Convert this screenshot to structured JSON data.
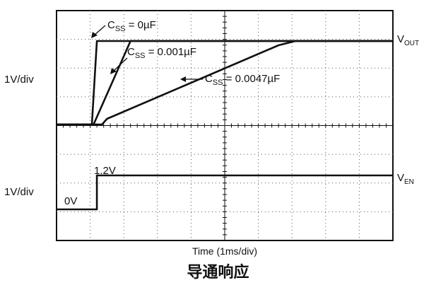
{
  "caption": "导通响应",
  "chart_data": {
    "type": "line",
    "xlabel": "Time (1ms/div)",
    "x_unit": "ms",
    "xlim": [
      0,
      10
    ],
    "grid": true,
    "panels": [
      {
        "name": "top",
        "ylabel": "1V/div",
        "ylim": [
          0,
          3
        ],
        "channel_label": "V_OUT",
        "series": [
          {
            "name": "C_SS = 0µF",
            "x": [
              0,
              1.05,
              1.2,
              10
            ],
            "y": [
              0,
              0,
              2.95,
              2.95
            ]
          },
          {
            "name": "C_SS = 0.001µF",
            "x": [
              0,
              1.1,
              2.2,
              10
            ],
            "y": [
              0,
              0,
              2.95,
              2.95
            ]
          },
          {
            "name": "C_SS = 0.0047µF",
            "x": [
              0,
              1.35,
              1.5,
              6.6,
              7.1,
              10
            ],
            "y": [
              0,
              0,
              0.2,
              2.8,
              2.95,
              2.95
            ]
          }
        ]
      },
      {
        "name": "bottom",
        "ylabel": "1V/div",
        "ylim": [
          0,
          2
        ],
        "channel_label": "V_EN",
        "series": [
          {
            "name": "EN",
            "x": [
              0,
              1.2,
              1.2,
              10
            ],
            "y": [
              0,
              0,
              1.2,
              1.2
            ]
          }
        ],
        "annotations": [
          "0V",
          "1.2V"
        ]
      }
    ]
  }
}
